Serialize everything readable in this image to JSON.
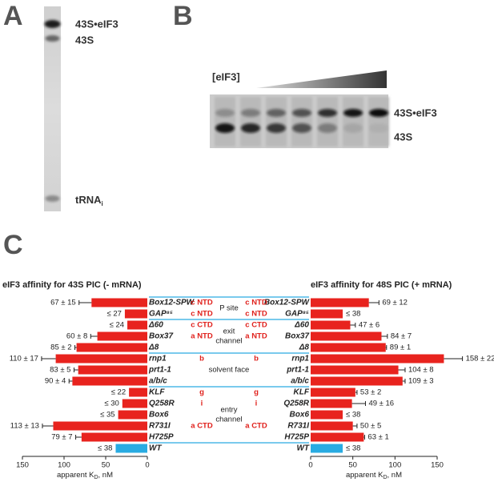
{
  "panel_labels": [
    "A",
    "B",
    "C"
  ],
  "gel_a": {
    "labels": [
      "43S•eIF3",
      "43S"
    ],
    "trna": [
      "tRNA",
      "i"
    ]
  },
  "gel_b": {
    "titration": "[eIF3]",
    "labels": [
      "43S•eIF3",
      "43S"
    ]
  },
  "subunits": [
    "c NTD",
    "c NTD",
    "c CTD",
    "a NTD",
    null,
    "b",
    null,
    null,
    "g",
    "i",
    null,
    "a CTD",
    null,
    null
  ],
  "regions": [
    {
      "label": [
        "P site"
      ],
      "members": [
        "Box12-SPW",
        "GAP⁸⁵"
      ]
    },
    {
      "label": [
        "exit",
        "channel"
      ],
      "members": [
        "Δ60",
        "Box37",
        "Δ8"
      ]
    },
    {
      "label": [
        "solvent face"
      ],
      "members": [
        "rnp1",
        "prt1-1",
        "a/b/c"
      ]
    },
    {
      "label": [
        "entry",
        "channel"
      ],
      "members": [
        "KLF",
        "Q258R",
        "Box6",
        "R731I",
        "H725P"
      ]
    }
  ],
  "chart_data": [
    {
      "type": "bar",
      "orientation": "horizontal",
      "x_reversed": true,
      "title": "eIF3 affinity for 43S PIC (- mRNA)",
      "categories": [
        "Box12-SPW",
        "GAP⁸⁵",
        "Δ60",
        "Box37",
        "Δ8",
        "rnp1",
        "prt1-1",
        "a/b/c",
        "KLF",
        "Q258R",
        "Box6",
        "R731I",
        "H725P",
        "WT"
      ],
      "values": [
        67,
        27,
        24,
        60,
        85,
        110,
        83,
        90,
        22,
        30,
        35,
        113,
        79,
        38
      ],
      "errors": [
        15,
        null,
        null,
        8,
        2,
        17,
        5,
        4,
        null,
        null,
        null,
        13,
        7,
        null
      ],
      "value_labels": [
        "67 ± 15",
        "≤ 27",
        "≤ 24",
        "60 ± 8",
        "85 ± 2",
        "110 ± 17",
        "83 ± 5",
        "90 ± 4",
        "≤ 22",
        "≤ 30",
        "≤ 35",
        "113 ± 13",
        "79 ± 7",
        "≤ 38"
      ],
      "colors": [
        "#e8231e",
        "#e8231e",
        "#e8231e",
        "#e8231e",
        "#e8231e",
        "#e8231e",
        "#e8231e",
        "#e8231e",
        "#e8231e",
        "#e8231e",
        "#e8231e",
        "#e8231e",
        "#e8231e",
        "#29abe2"
      ],
      "xlim": [
        0,
        150
      ],
      "xticks": [
        0,
        50,
        100,
        150
      ],
      "xlabel": [
        "apparent K",
        "D",
        ", nM"
      ]
    },
    {
      "type": "bar",
      "orientation": "horizontal",
      "x_reversed": false,
      "title": "eIF3 affinity for 48S PIC (+ mRNA)",
      "categories": [
        "Box12-SPW",
        "GAP⁸⁵",
        "Δ60",
        "Box37",
        "Δ8",
        "rnp1",
        "prt1-1",
        "a/b/c",
        "KLF",
        "Q258R",
        "Box6",
        "R731I",
        "H725P",
        "WT"
      ],
      "values": [
        69,
        38,
        47,
        84,
        89,
        158,
        104,
        109,
        53,
        49,
        38,
        50,
        63,
        38
      ],
      "errors": [
        12,
        null,
        6,
        7,
        1,
        22,
        8,
        3,
        2,
        16,
        null,
        5,
        1,
        null
      ],
      "value_labels": [
        "69 ± 12",
        "≤ 38",
        "47 ± 6",
        "84 ± 7",
        "89 ± 1",
        "158 ± 22",
        "104 ± 8",
        "109 ± 3",
        "53 ± 2",
        "49 ± 16",
        "≤ 38",
        "50 ± 5",
        "63 ± 1",
        "≤ 38"
      ],
      "colors": [
        "#e8231e",
        "#e8231e",
        "#e8231e",
        "#e8231e",
        "#e8231e",
        "#e8231e",
        "#e8231e",
        "#e8231e",
        "#e8231e",
        "#e8231e",
        "#e8231e",
        "#e8231e",
        "#e8231e",
        "#29abe2"
      ],
      "xlim": [
        0,
        150
      ],
      "xticks": [
        0,
        50,
        100,
        150
      ],
      "xlabel": [
        "apparent K",
        "D",
        ", nM"
      ]
    }
  ]
}
